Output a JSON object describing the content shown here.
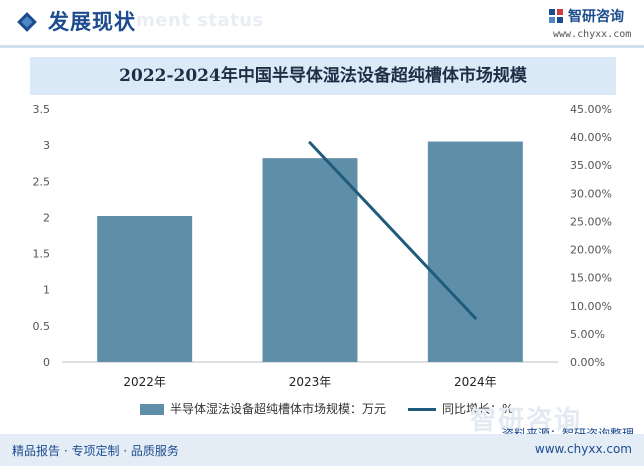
{
  "header": {
    "title": "发展现状",
    "ghost_text": "ment status",
    "logo_name": "智研咨询",
    "logo_url": "www.chyxx.com"
  },
  "chart_data": {
    "type": "bar",
    "title": "2022-2024年中国半导体湿法设备超纯槽体市场规模",
    "categories": [
      "2022年",
      "2023年",
      "2024年"
    ],
    "series": [
      {
        "name": "半导体湿法设备超纯槽体市场规模：万元",
        "type": "bar",
        "axis": "left",
        "values": [
          2.02,
          2.82,
          3.05
        ]
      },
      {
        "name": "同比增长：%",
        "type": "line",
        "axis": "right",
        "values": [
          null,
          0.39,
          0.078
        ]
      }
    ],
    "y_left": {
      "range": [
        0,
        3.5
      ],
      "ticks": [
        "0",
        "0.5",
        "1",
        "1.5",
        "2",
        "2.5",
        "3",
        "3.5"
      ]
    },
    "y_right": {
      "range": [
        0,
        0.45
      ],
      "ticks": [
        "0.00%",
        "5.00%",
        "10.00%",
        "15.00%",
        "20.00%",
        "25.00%",
        "30.00%",
        "35.00%",
        "40.00%",
        "45.00%"
      ]
    },
    "grid": false,
    "legend_position": "bottom",
    "colors": {
      "bar": "#5f8fa8",
      "line": "#1f5b7a"
    }
  },
  "watermark": "智研咨询",
  "source": "资料来源：智研咨询整理",
  "footer": {
    "left": "精品报告 · 专项定制 · 品质服务",
    "right": "www.chyxx.com"
  }
}
